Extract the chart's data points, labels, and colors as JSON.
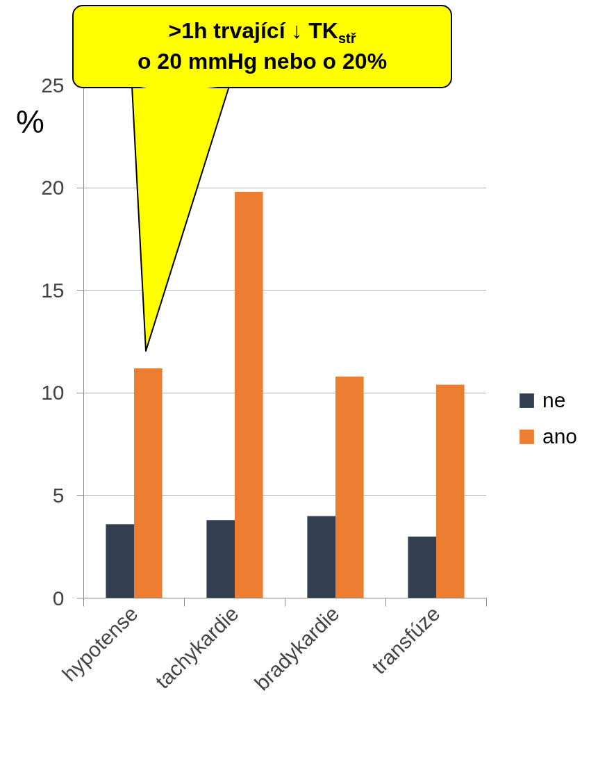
{
  "chart_data": {
    "type": "bar",
    "categories": [
      "hypotense",
      "tachykardie",
      "bradykardie",
      "transfúze"
    ],
    "series": [
      {
        "name": "ne",
        "color": "#333f50",
        "values": [
          3.6,
          3.8,
          4.0,
          3.0
        ]
      },
      {
        "name": "ano",
        "color": "#ed7d31",
        "values": [
          11.2,
          19.8,
          10.8,
          10.4
        ]
      }
    ],
    "ylabel": "%",
    "ylim": [
      0,
      25
    ],
    "yticks": [
      0,
      5,
      10,
      15,
      20,
      25
    ],
    "grid": "y",
    "legend": "right",
    "annotations": [
      ">1h trvající ↓ TK$_{stř}$\no 20 mmHg nebo o 20%"
    ]
  }
}
